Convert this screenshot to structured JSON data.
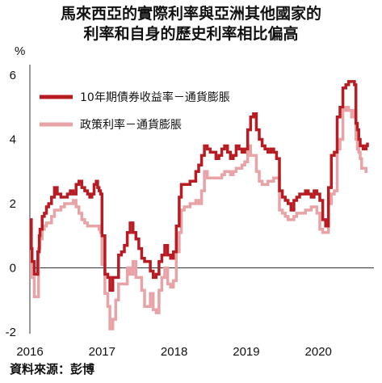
{
  "title_line1": "馬來西亞的實際利率與亞洲其他國家的",
  "title_line2": "利率和自身的歷史利率相比偏高",
  "source": "資料來源：彭博",
  "chart_data": {
    "type": "line",
    "ylabel": "%",
    "ylim": [
      -2,
      6
    ],
    "yticks": [
      "6",
      "4",
      "2",
      "0",
      "-2"
    ],
    "xticks": [
      "2016",
      "2017",
      "2018",
      "2019",
      "2020"
    ],
    "xlim": [
      2016.0,
      2020.77
    ],
    "zero_line": true,
    "legend_position": "top-left",
    "series": [
      {
        "name": "10年期債券收益率－通貨膨脹",
        "color": "#b81c22",
        "x": [
          2016.0,
          2016.02,
          2016.03,
          2016.06,
          2016.09,
          2016.11,
          2016.13,
          2016.14,
          2016.17,
          2016.2,
          2016.23,
          2016.26,
          2016.3,
          2016.34,
          2016.38,
          2016.43,
          2016.48,
          2016.52,
          2016.56,
          2016.6,
          2016.64,
          2016.68,
          2016.72,
          2016.76,
          2016.8,
          2016.83,
          2016.86,
          2016.89,
          2016.92,
          2016.94,
          2016.96,
          2016.98,
          2017.0,
          2017.04,
          2017.08,
          2017.11,
          2017.15,
          2017.19,
          2017.23,
          2017.27,
          2017.31,
          2017.35,
          2017.39,
          2017.43,
          2017.47,
          2017.51,
          2017.55,
          2017.59,
          2017.63,
          2017.67,
          2017.71,
          2017.75,
          2017.79,
          2017.83,
          2017.87,
          2017.91,
          2017.95,
          2017.99,
          2018.03,
          2018.07,
          2018.1,
          2018.14,
          2018.18,
          2018.22,
          2018.26,
          2018.3,
          2018.34,
          2018.38,
          2018.42,
          2018.46,
          2018.5,
          2018.54,
          2018.58,
          2018.62,
          2018.66,
          2018.7,
          2018.74,
          2018.78,
          2018.82,
          2018.86,
          2018.9,
          2018.94,
          2018.98,
          2019.02,
          2019.06,
          2019.1,
          2019.14,
          2019.18,
          2019.22,
          2019.26,
          2019.3,
          2019.34,
          2019.38,
          2019.42,
          2019.46,
          2019.5,
          2019.54,
          2019.58,
          2019.62,
          2019.66,
          2019.7,
          2019.74,
          2019.78,
          2019.82,
          2019.86,
          2019.9,
          2019.94,
          2019.98,
          2020.02,
          2020.06,
          2020.1,
          2020.14,
          2020.18,
          2020.22,
          2020.26,
          2020.3,
          2020.34,
          2020.38,
          2020.42,
          2020.46,
          2020.5,
          2020.52,
          2020.54,
          2020.56,
          2020.58,
          2020.6,
          2020.62,
          2020.64,
          2020.66,
          2020.68
        ],
        "values": [
          1.5,
          0.6,
          0.2,
          -0.2,
          -0.2,
          0.5,
          1.0,
          1.2,
          1.6,
          1.7,
          1.9,
          2.0,
          2.2,
          2.5,
          2.3,
          2.2,
          2.2,
          2.3,
          2.4,
          2.3,
          2.6,
          2.7,
          2.5,
          2.4,
          2.3,
          2.2,
          2.3,
          2.6,
          2.7,
          2.5,
          2.4,
          2.3,
          1.0,
          -0.2,
          -0.3,
          -0.7,
          -0.3,
          -0.3,
          0.4,
          0.5,
          0.7,
          1.1,
          1.4,
          1.1,
          0.9,
          0.6,
          0.3,
          0.2,
          0.2,
          -0.1,
          -0.3,
          -0.2,
          0.2,
          0.4,
          0.7,
          0.4,
          0.3,
          0.5,
          1.3,
          2.2,
          2.6,
          2.6,
          2.6,
          2.7,
          2.7,
          3.0,
          3.2,
          3.5,
          3.8,
          3.7,
          3.6,
          3.6,
          3.4,
          3.5,
          3.7,
          3.8,
          3.6,
          3.4,
          3.5,
          3.8,
          3.7,
          3.6,
          3.7,
          4.3,
          4.7,
          4.8,
          4.3,
          4.0,
          3.8,
          3.7,
          3.6,
          3.7,
          3.6,
          3.4,
          2.4,
          2.2,
          2.1,
          2.0,
          1.8,
          2.1,
          2.2,
          2.3,
          2.3,
          2.4,
          2.3,
          2.2,
          2.4,
          2.3,
          2.1,
          1.5,
          1.3,
          2.5,
          3.5,
          3.6,
          4.7,
          5.0,
          5.6,
          5.7,
          5.8,
          5.8,
          5.7,
          4.5,
          4.3,
          4.0,
          3.8,
          3.8,
          3.7,
          3.7,
          3.8,
          3.9
        ]
      },
      {
        "name": "政策利率－通貨膨脹",
        "color": "#e8a3a6",
        "x": [
          2016.0,
          2016.02,
          2016.04,
          2016.06,
          2016.08,
          2016.1,
          2016.12,
          2016.14,
          2016.17,
          2016.2,
          2016.23,
          2016.26,
          2016.3,
          2016.34,
          2016.38,
          2016.43,
          2016.48,
          2016.52,
          2016.56,
          2016.6,
          2016.64,
          2016.68,
          2016.72,
          2016.76,
          2016.8,
          2016.83,
          2016.86,
          2016.89,
          2016.92,
          2016.94,
          2016.96,
          2016.98,
          2017.0,
          2017.04,
          2017.08,
          2017.11,
          2017.15,
          2017.19,
          2017.23,
          2017.27,
          2017.31,
          2017.35,
          2017.39,
          2017.43,
          2017.47,
          2017.51,
          2017.55,
          2017.59,
          2017.63,
          2017.67,
          2017.71,
          2017.75,
          2017.79,
          2017.83,
          2017.87,
          2017.91,
          2017.95,
          2017.99,
          2018.03,
          2018.07,
          2018.1,
          2018.14,
          2018.18,
          2018.22,
          2018.26,
          2018.3,
          2018.34,
          2018.38,
          2018.42,
          2018.46,
          2018.5,
          2018.54,
          2018.58,
          2018.62,
          2018.66,
          2018.7,
          2018.74,
          2018.78,
          2018.82,
          2018.86,
          2018.9,
          2018.94,
          2018.98,
          2019.02,
          2019.06,
          2019.1,
          2019.14,
          2019.18,
          2019.22,
          2019.26,
          2019.3,
          2019.34,
          2019.38,
          2019.42,
          2019.46,
          2019.5,
          2019.54,
          2019.58,
          2019.62,
          2019.66,
          2019.7,
          2019.74,
          2019.78,
          2019.82,
          2019.86,
          2019.9,
          2019.94,
          2019.98,
          2020.02,
          2020.06,
          2020.1,
          2020.14,
          2020.18,
          2020.22,
          2020.26,
          2020.3,
          2020.34,
          2020.38,
          2020.42,
          2020.46,
          2020.5,
          2020.52,
          2020.54,
          2020.56,
          2020.58,
          2020.6,
          2020.62,
          2020.64,
          2020.66,
          2020.68
        ],
        "values": [
          0.5,
          -0.3,
          -0.3,
          -0.9,
          -0.9,
          -0.9,
          0.6,
          0.9,
          1.2,
          1.3,
          1.4,
          1.4,
          1.6,
          1.8,
          1.8,
          1.9,
          2.0,
          2.0,
          2.0,
          2.1,
          1.9,
          1.7,
          1.5,
          1.4,
          1.3,
          1.3,
          1.3,
          1.3,
          1.3,
          1.3,
          1.2,
          1.1,
          0.1,
          -0.8,
          -1.2,
          -1.9,
          -1.6,
          -1.0,
          -0.5,
          -0.5,
          -0.5,
          0.0,
          -0.2,
          0.2,
          -0.3,
          -0.3,
          -0.7,
          -1.2,
          -1.2,
          -0.8,
          -1.3,
          -1.4,
          -0.7,
          -0.3,
          0.0,
          -0.5,
          -0.6,
          -0.4,
          0.5,
          1.1,
          1.8,
          1.9,
          1.9,
          2.0,
          2.0,
          2.1,
          2.0,
          2.4,
          3.0,
          2.8,
          2.8,
          2.8,
          2.8,
          2.8,
          2.9,
          3.0,
          3.0,
          2.9,
          3.0,
          3.1,
          3.1,
          3.2,
          3.3,
          3.8,
          3.5,
          3.5,
          3.0,
          2.7,
          2.6,
          2.6,
          2.7,
          2.7,
          2.8,
          2.8,
          1.8,
          1.7,
          1.6,
          1.5,
          1.5,
          1.6,
          1.7,
          1.7,
          1.7,
          1.8,
          1.8,
          1.9,
          1.9,
          1.7,
          1.2,
          1.1,
          1.1,
          2.0,
          2.3,
          2.4,
          3.7,
          4.0,
          4.9,
          5.0,
          4.9,
          4.7,
          4.9,
          4.0,
          3.7,
          3.6,
          3.4,
          3.1,
          3.1,
          3.1,
          3.0,
          3.0
        ]
      }
    ]
  }
}
